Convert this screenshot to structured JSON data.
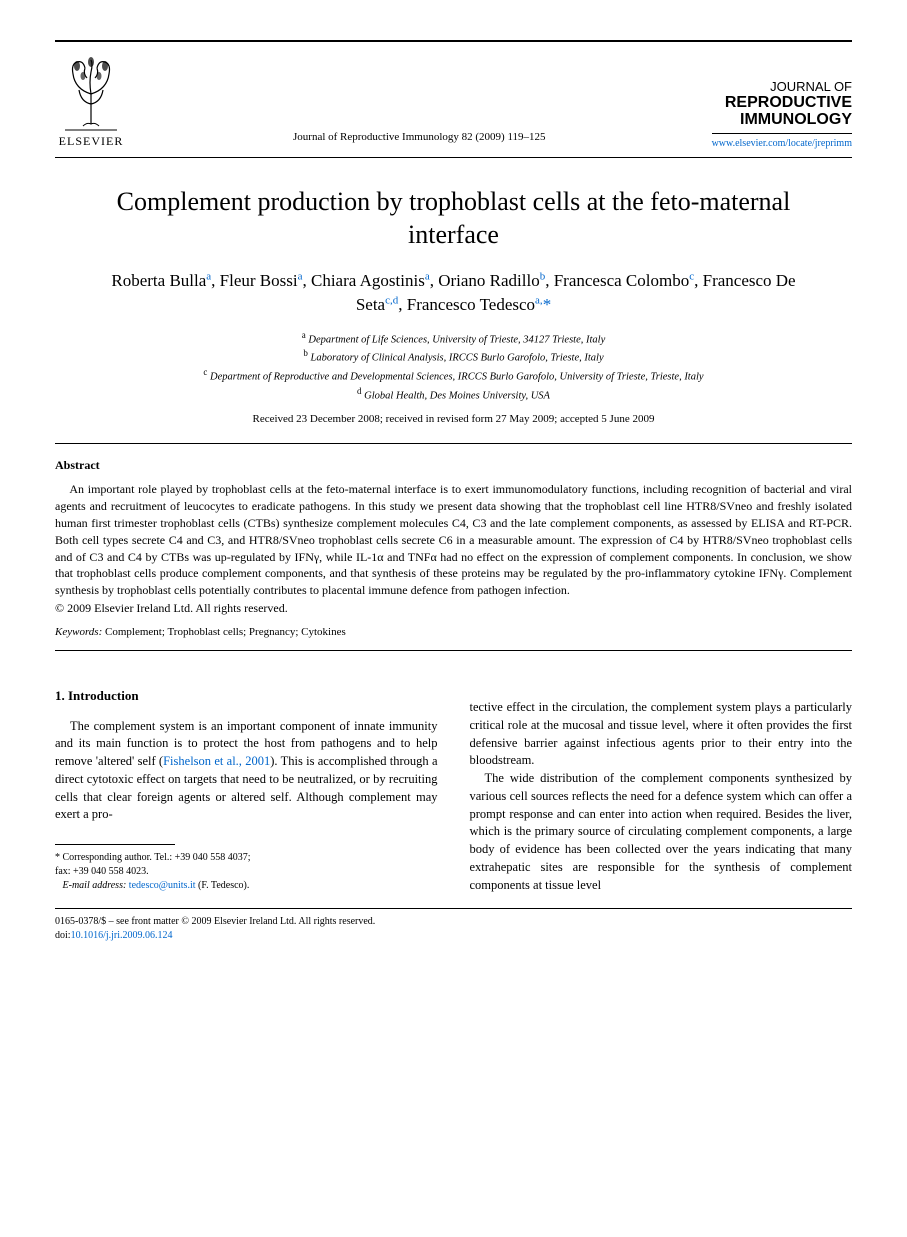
{
  "header": {
    "publisher_word": "ELSEVIER",
    "citation": "Journal of Reproductive Immunology 82 (2009) 119–125",
    "journal_line1": "JOURNAL OF",
    "journal_line2": "REPRODUCTIVE",
    "journal_line3": "IMMUNOLOGY",
    "journal_url": "www.elsevier.com/locate/jreprimm"
  },
  "article": {
    "title": "Complement production by trophoblast cells at the feto-maternal interface",
    "authors_html": "Roberta Bulla<sup>a</sup>, Fleur Bossi<sup>a</sup>, Chiara Agostinis<sup>a</sup>, Oriano Radillo<sup>b</sup>, Francesca Colombo<sup>c</sup>, Francesco De Seta<sup>c,d</sup>, Francesco Tedesco<sup>a,</sup><span class=\"star\">*</span>",
    "affiliations": {
      "a": "Department of Life Sciences, University of Trieste, 34127 Trieste, Italy",
      "b": "Laboratory of Clinical Analysis, IRCCS Burlo Garofolo, Trieste, Italy",
      "c": "Department of Reproductive and Developmental Sciences, IRCCS Burlo Garofolo, University of Trieste, Trieste, Italy",
      "d": "Global Health, Des Moines University, USA"
    },
    "dates": "Received 23 December 2008; received in revised form 27 May 2009; accepted 5 June 2009"
  },
  "abstract": {
    "heading": "Abstract",
    "body": "An important role played by trophoblast cells at the feto-maternal interface is to exert immunomodulatory functions, including recognition of bacterial and viral agents and recruitment of leucocytes to eradicate pathogens. In this study we present data showing that the trophoblast cell line HTR8/SVneo and freshly isolated human first trimester trophoblast cells (CTBs) synthesize complement molecules C4, C3 and the late complement components, as assessed by ELISA and RT-PCR. Both cell types secrete C4 and C3, and HTR8/SVneo trophoblast cells secrete C6 in a measurable amount. The expression of C4 by HTR8/SVneo trophoblast cells and of C3 and C4 by CTBs was up-regulated by IFNγ, while IL-1α and TNFα had no effect on the expression of complement components. In conclusion, we show that trophoblast cells produce complement components, and that synthesis of these proteins may be regulated by the pro-inflammatory cytokine IFNγ. Complement synthesis by trophoblast cells potentially contributes to placental immune defence from pathogen infection.",
    "copyright": "© 2009 Elsevier Ireland Ltd. All rights reserved.",
    "keywords_label": "Keywords:",
    "keywords_value": "Complement; Trophoblast cells; Pregnancy; Cytokines"
  },
  "intro": {
    "heading": "1. Introduction",
    "col1_p1_pre": "The complement system is an important component of innate immunity and its main function is to protect the host from pathogens and to help remove 'altered' self (",
    "col1_cite": "Fishelson et al., 2001",
    "col1_p1_post": "). This is accomplished through a direct cytotoxic effect on targets that need to be neutralized, or by recruiting cells that clear foreign agents or altered self. Although complement may exert a pro-",
    "col2_p1": "tective effect in the circulation, the complement system plays a particularly critical role at the mucosal and tissue level, where it often provides the first defensive barrier against infectious agents prior to their entry into the bloodstream.",
    "col2_p2": "The wide distribution of the complement components synthesized by various cell sources reflects the need for a defence system which can offer a prompt response and can enter into action when required. Besides the liver, which is the primary source of circulating complement components, a large body of evidence has been collected over the years indicating that many extrahepatic sites are responsible for the synthesis of complement components at tissue level"
  },
  "footnote": {
    "corr_label": "Corresponding author. Tel.: +39 040 558 4037;",
    "fax": "fax: +39 040 558 4023.",
    "email_label": "E-mail address:",
    "email": "tedesco@units.it",
    "email_who": "(F. Tedesco)."
  },
  "footer": {
    "line1": "0165-0378/$ – see front matter © 2009 Elsevier Ireland Ltd. All rights reserved.",
    "doi_label": "doi:",
    "doi": "10.1016/j.jri.2009.06.124"
  },
  "colors": {
    "link": "#0066cc",
    "text": "#000000",
    "bg": "#ffffff"
  }
}
